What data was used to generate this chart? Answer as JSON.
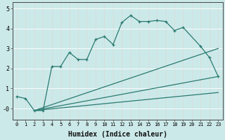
{
  "xlabel": "Humidex (Indice chaleur)",
  "background_color": "#cce9e9",
  "grid_color": "#b0d8d8",
  "line_color": "#2a7a70",
  "xlim": [
    -0.5,
    23.5
  ],
  "ylim": [
    -0.55,
    5.3
  ],
  "series1_x": [
    0,
    1,
    2,
    3,
    4,
    5,
    6,
    7,
    8,
    9,
    10,
    11,
    12,
    13,
    14,
    15,
    16,
    17,
    18,
    19,
    21,
    22,
    23
  ],
  "series1_y": [
    0.6,
    0.5,
    -0.1,
    -0.1,
    2.1,
    2.1,
    2.8,
    2.45,
    2.45,
    3.45,
    3.6,
    3.2,
    4.3,
    4.65,
    4.35,
    4.35,
    4.4,
    4.35,
    3.9,
    4.05,
    3.1,
    2.55,
    1.6
  ],
  "fan_origin_x": 2,
  "fan_origin_y": -0.1,
  "fan_lines": [
    {
      "end_x": 23,
      "end_y": 3.0
    },
    {
      "end_x": 23,
      "end_y": 1.6
    },
    {
      "end_x": 23,
      "end_y": 0.8
    }
  ]
}
